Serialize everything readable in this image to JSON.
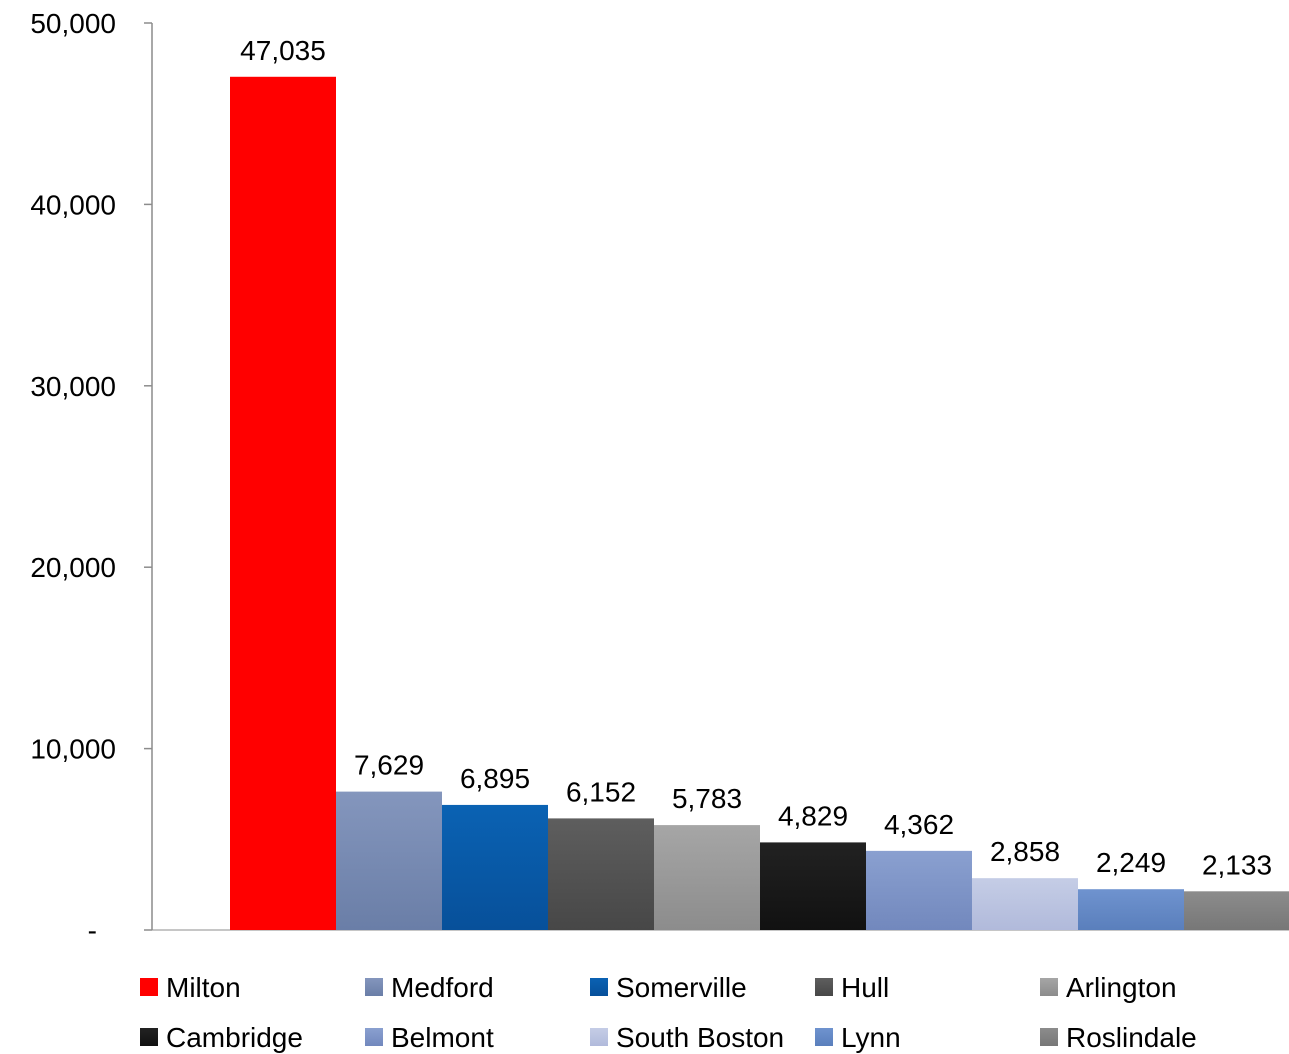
{
  "chart_data": {
    "type": "bar",
    "title": "",
    "xlabel": "",
    "ylabel": "",
    "ylim": [
      0,
      50000
    ],
    "y_ticks": [
      0,
      10000,
      20000,
      30000,
      40000,
      50000
    ],
    "y_tick_labels": [
      "-",
      "10,000",
      "20,000",
      "30,000",
      "40,000",
      "50,000"
    ],
    "grid": false,
    "legend_position": "bottom",
    "categories": [
      "Milton",
      "Medford",
      "Somerville",
      "Hull",
      "Arlington",
      "Cambridge",
      "Belmont",
      "South Boston",
      "Lynn",
      "Roslindale"
    ],
    "values": [
      47035,
      7629,
      6895,
      6152,
      5783,
      4829,
      4362,
      2858,
      2249,
      2133
    ],
    "value_labels": [
      "47,035",
      "7,629",
      "6,895",
      "6,152",
      "5,783",
      "4,829",
      "4,362",
      "2,858",
      "2,249",
      "2,133"
    ],
    "colors": [
      "#ff0000",
      "#8496bd",
      "#0a62b3",
      "#5e5e5e",
      "#a6a6a6",
      "#222222",
      "#8aa0d0",
      "#c5cde6",
      "#6f93cf",
      "#8c8c8c"
    ],
    "colors_dark": [
      "#ff0000",
      "#6a7ea7",
      "#07509a",
      "#474747",
      "#8c8c8c",
      "#111111",
      "#7288bd",
      "#b1badb",
      "#5a7fbc",
      "#777777"
    ]
  }
}
